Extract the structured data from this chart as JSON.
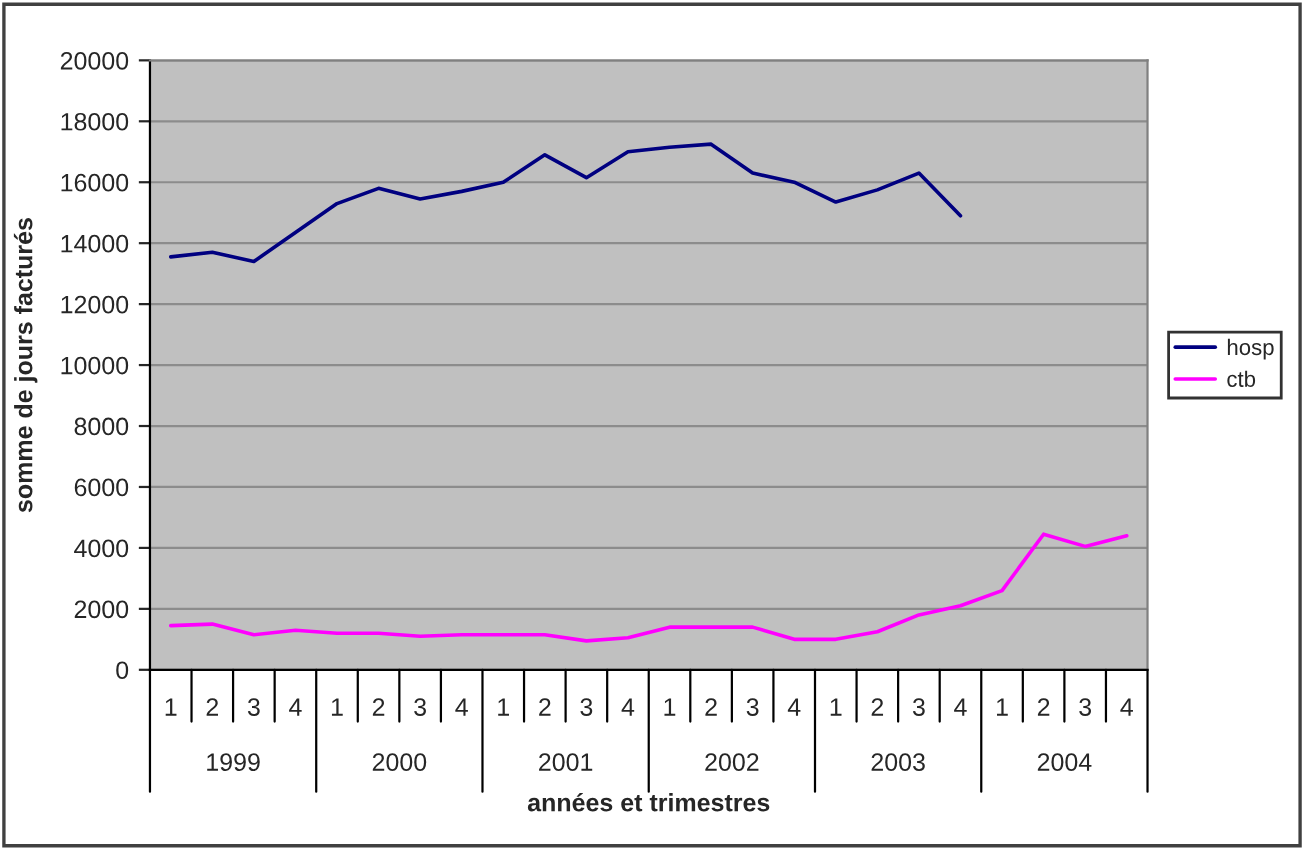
{
  "chart_data": {
    "type": "line",
    "xlabel": "années et trimestres",
    "ylabel": "somme de jours facturés",
    "categories": [
      "1",
      "2",
      "3",
      "4",
      "1",
      "2",
      "3",
      "4",
      "1",
      "2",
      "3",
      "4",
      "1",
      "2",
      "3",
      "4",
      "1",
      "2",
      "3",
      "4",
      "1",
      "2",
      "3",
      "4"
    ],
    "series": [
      {
        "name": "hosp",
        "color": "#000080",
        "values": [
          13550,
          13700,
          13400,
          14350,
          15300,
          15800,
          15450,
          15700,
          16000,
          16900,
          16150,
          17000,
          17150,
          17250,
          16300,
          16000,
          15350,
          15750,
          16300,
          14900,
          null,
          null,
          null,
          null
        ]
      },
      {
        "name": "ctb",
        "color": "#ff00ff",
        "values": [
          1450,
          1500,
          1150,
          1300,
          1200,
          1200,
          1100,
          1150,
          1150,
          1150,
          950,
          1050,
          1400,
          1400,
          1400,
          1000,
          1000,
          1250,
          1800,
          2100,
          2600,
          4450,
          4050,
          4400
        ]
      }
    ],
    "annotations": [
      "1999",
      "2000",
      "2001",
      "2002",
      "2003",
      "2004"
    ],
    "ylim": [
      0,
      20000
    ],
    "yticks": [
      0,
      2000,
      4000,
      6000,
      8000,
      10000,
      12000,
      14000,
      16000,
      18000,
      20000
    ],
    "grid": "y",
    "legend": "right",
    "marker": "none",
    "line_style": "solid"
  }
}
